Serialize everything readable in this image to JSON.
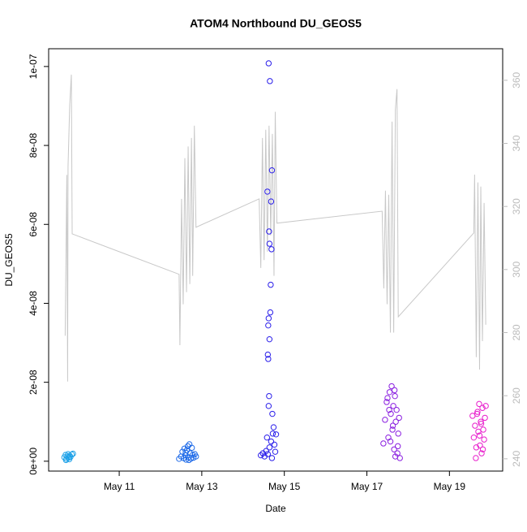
{
  "chart_data": {
    "type": "scatter",
    "title": "ATOM4 Northbound DU_GEOS5",
    "x_label": "Date",
    "y_label": "DU_GEOS5",
    "xlim": [
      9.29,
      20.29
    ],
    "xticks": [
      {
        "value": 11,
        "label": "May 11"
      },
      {
        "value": 13,
        "label": "May 13"
      },
      {
        "value": 15,
        "label": "May 15"
      },
      {
        "value": 17,
        "label": "May 17"
      },
      {
        "value": 19,
        "label": "May 19"
      }
    ],
    "ylim": [
      -2.5e-09,
      1.045e-07
    ],
    "yticks": [
      {
        "value": 0,
        "label": "0e+00"
      },
      {
        "value": 2e-08,
        "label": "2e-08"
      },
      {
        "value": 4e-08,
        "label": "4e-08"
      },
      {
        "value": 6e-08,
        "label": "6e-08"
      },
      {
        "value": 8e-08,
        "label": "8e-08"
      },
      {
        "value": 1e-07,
        "label": "1e-07"
      }
    ],
    "y2lim": [
      236.1,
      370
    ],
    "y2ticks": [
      240,
      260,
      280,
      300,
      320,
      340,
      360
    ],
    "y2_color": "#bbbbbb",
    "grid": false,
    "series": [
      {
        "type": "line",
        "axis": "y2",
        "color": "#c8c8c8",
        "x": [
          9.69,
          9.73,
          9.75,
          9.76,
          9.8,
          9.84,
          9.86,
          12.45,
          12.47,
          12.51,
          12.55,
          12.59,
          12.63,
          12.67,
          12.71,
          12.75,
          12.78,
          12.82,
          12.86,
          14.39,
          14.43,
          14.47,
          14.51,
          14.55,
          14.59,
          14.63,
          14.67,
          14.71,
          14.75,
          14.78,
          14.82,
          17.37,
          17.41,
          17.45,
          17.49,
          17.53,
          17.57,
          17.61,
          17.65,
          17.69,
          17.73,
          17.76,
          19.59,
          19.61,
          19.65,
          19.69,
          19.73,
          19.76,
          19.8,
          19.84,
          19.88
        ],
        "values": [
          279,
          330,
          264.5,
          332.7,
          352,
          361.8,
          311.3,
          298.5,
          276,
          322.4,
          289,
          335.3,
          292.8,
          339,
          295.4,
          341.7,
          298,
          345.6,
          313.4,
          322.4,
          300.5,
          341.7,
          303,
          344.3,
          305.7,
          345.6,
          310.8,
          343,
          298,
          350,
          314.7,
          318.5,
          294,
          325,
          289,
          323.7,
          280,
          346.9,
          280,
          350.7,
          357.2,
          285,
          311.6,
          330.1,
          272.2,
          327.6,
          268.3,
          326.3,
          277.3,
          321.1,
          282.5
        ]
      },
      {
        "type": "scatter",
        "color": "#1fa2e8",
        "x": [
          9.67,
          9.7,
          9.72,
          9.74,
          9.76,
          9.78,
          9.8,
          9.82,
          9.85,
          9.88,
          9.71,
          9.79
        ],
        "values": [
          1e-09,
          1.6e-09,
          6e-10,
          1.2e-09,
          1.8e-09,
          9e-10,
          1.4e-09,
          1.1e-09,
          1.7e-09,
          1.9e-09,
          3e-10,
          5e-10
        ]
      },
      {
        "type": "scatter",
        "color": "#1e6ae8",
        "x": [
          12.45,
          12.5,
          12.53,
          12.56,
          12.58,
          12.6,
          12.62,
          12.64,
          12.66,
          12.68,
          12.7,
          12.72,
          12.74,
          12.76,
          12.78,
          12.8,
          12.83,
          12.86,
          12.61,
          12.69
        ],
        "values": [
          6e-10,
          1.2e-09,
          2.4e-09,
          8e-10,
          3.2e-09,
          1.5e-09,
          4e-10,
          2.8e-09,
          3.8e-09,
          1e-09,
          4.3e-09,
          2e-09,
          7e-10,
          3.4e-09,
          1.6e-09,
          9e-10,
          1.8e-09,
          1.2e-09,
          2.2e-09,
          3e-10
        ]
      },
      {
        "type": "scatter",
        "color": "#2a1eea",
        "x": [
          14.62,
          14.65,
          14.7,
          14.59,
          14.68,
          14.63,
          14.64,
          14.69,
          14.67,
          14.66,
          14.62,
          14.61,
          14.64,
          14.6,
          14.61,
          14.63,
          14.62,
          14.71,
          14.43,
          14.48,
          14.52,
          14.56,
          14.6,
          14.64,
          14.68,
          14.72,
          14.76,
          14.8,
          14.74,
          14.78,
          14.58,
          14.7
        ],
        "values": [
          1.008e-07,
          9.63e-08,
          7.37e-08,
          6.83e-08,
          6.58e-08,
          5.82e-08,
          5.51e-08,
          5.37e-08,
          4.47e-08,
          3.77e-08,
          3.62e-08,
          3.44e-08,
          3.09e-08,
          2.7e-08,
          2.59e-08,
          1.65e-08,
          1.4e-08,
          1.2e-08,
          1.5e-09,
          2e-09,
          1.2e-09,
          2.6e-09,
          1.8e-09,
          3.5e-09,
          5e-09,
          7e-09,
          4.2e-09,
          6.8e-09,
          8.6e-09,
          2.4e-09,
          6e-09,
          8e-10
        ]
      },
      {
        "type": "scatter",
        "color": "#8a1ee0",
        "x": [
          17.4,
          17.44,
          17.48,
          17.52,
          17.55,
          17.58,
          17.6,
          17.62,
          17.64,
          17.66,
          17.68,
          17.7,
          17.72,
          17.74,
          17.76,
          17.78,
          17.5,
          17.57,
          17.63,
          17.69,
          17.75,
          17.8,
          17.54,
          17.67
        ],
        "values": [
          4.5e-09,
          1.05e-08,
          1.5e-08,
          6e-09,
          1.75e-08,
          1.2e-08,
          1.9e-08,
          8e-09,
          1.4e-08,
          3e-09,
          1.65e-08,
          1e-08,
          1.3e-08,
          2e-09,
          7e-09,
          1.1e-08,
          1.6e-08,
          5e-09,
          9e-09,
          1.2e-09,
          3.8e-09,
          8e-10,
          1.3e-08,
          1.8e-08
        ]
      },
      {
        "type": "scatter",
        "color": "#e81ecc",
        "x": [
          19.56,
          19.59,
          19.62,
          19.65,
          19.68,
          19.7,
          19.72,
          19.74,
          19.76,
          19.78,
          19.8,
          19.82,
          19.84,
          19.86,
          19.88,
          19.64,
          19.73,
          19.81,
          19.67,
          19.77
        ],
        "values": [
          1.15e-08,
          6e-09,
          9e-09,
          3.5e-09,
          1.25e-08,
          7.5e-09,
          1.45e-08,
          4e-09,
          1e-08,
          2e-09,
          1.35e-08,
          8e-09,
          5.5e-09,
          1.1e-08,
          1.4e-08,
          8e-10,
          6.5e-09,
          3e-09,
          1.2e-08,
          9.5e-09
        ]
      }
    ]
  }
}
